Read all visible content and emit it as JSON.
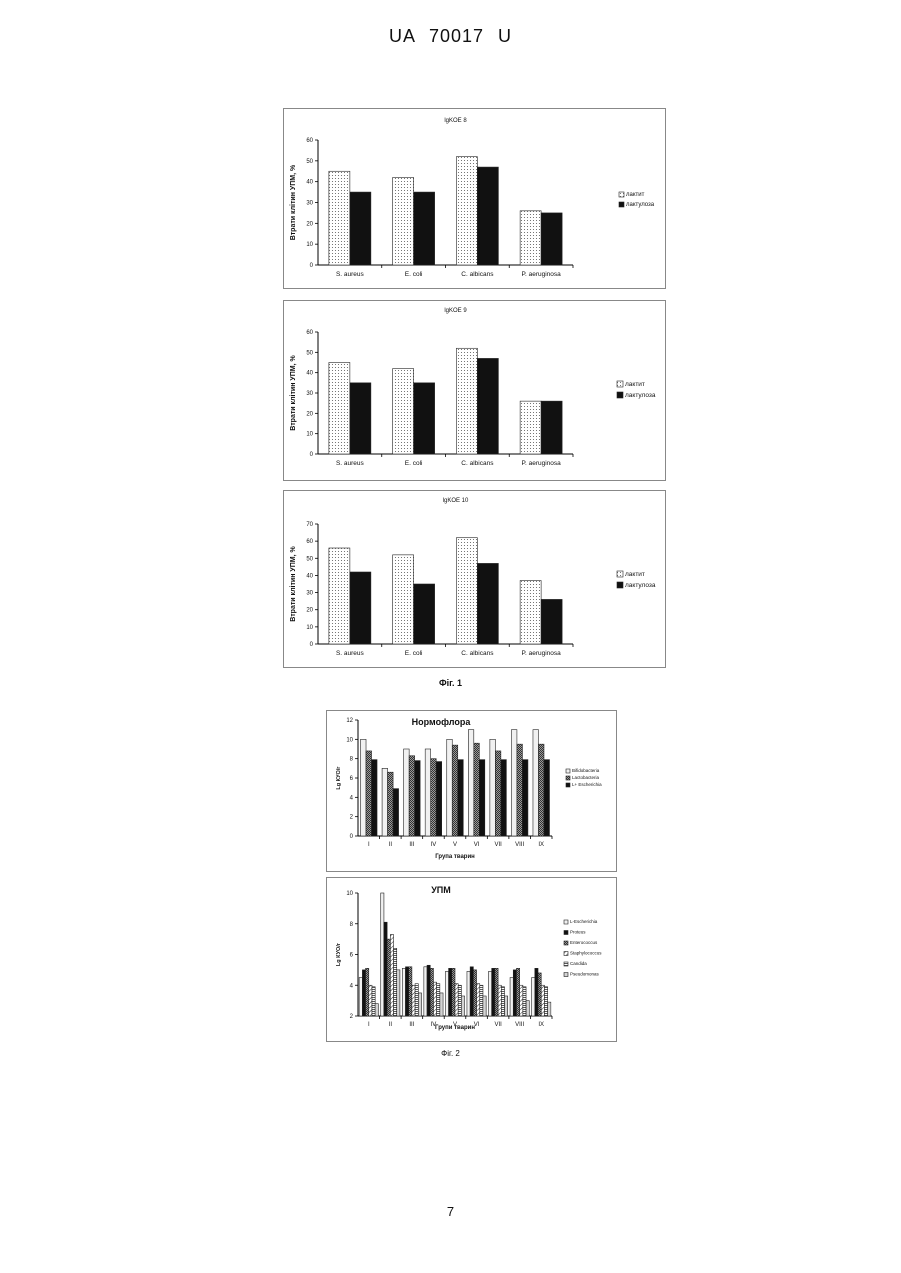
{
  "header": {
    "text": "UA   70017   U"
  },
  "page_number": "7",
  "fig1_caption": "Фіг. 1",
  "fig2_caption": "Фіг. 2",
  "chart_data": [
    {
      "type": "bar",
      "title": "lgKOE 8",
      "ylabel": "Втрати клітин УПМ, %",
      "xlabel": "",
      "ylim": [
        0,
        60
      ],
      "yticks": [
        "0",
        "10",
        "20",
        "30",
        "40",
        "50",
        "60"
      ],
      "categories": [
        "S. aureus",
        "E. coli",
        "C. albicans",
        "P. aeruginosa"
      ],
      "series": [
        {
          "name": "лактит",
          "values": [
            45,
            42,
            52,
            26
          ]
        },
        {
          "name": "лактулоза",
          "values": [
            35,
            35,
            47,
            25
          ]
        }
      ],
      "legend": "right"
    },
    {
      "type": "bar",
      "title": "lgKOE 9",
      "ylabel": "Втрати клітин УПМ, %",
      "xlabel": "",
      "ylim": [
        0,
        60
      ],
      "yticks": [
        "0",
        "10",
        "20",
        "30",
        "40",
        "50",
        "60"
      ],
      "categories": [
        "S. aureus",
        "E. coli",
        "C. albicans",
        "P. aeruginosa"
      ],
      "series": [
        {
          "name": "лактит",
          "values": [
            45,
            42,
            52,
            26
          ]
        },
        {
          "name": "лактулоза",
          "values": [
            35,
            35,
            47,
            26
          ]
        }
      ],
      "legend": "right"
    },
    {
      "type": "bar",
      "title": "lgKOE 10",
      "ylabel": "Втрати клітин УПМ, %",
      "xlabel": "",
      "ylim": [
        0,
        70
      ],
      "yticks": [
        "0",
        "10",
        "20",
        "30",
        "40",
        "50",
        "60",
        "70"
      ],
      "categories": [
        "S. aureus",
        "E. coli",
        "C. albicans",
        "P. aeruginosa"
      ],
      "series": [
        {
          "name": "лактит",
          "values": [
            56,
            52,
            62,
            37
          ]
        },
        {
          "name": "лактулоза",
          "values": [
            42,
            35,
            47,
            26
          ]
        }
      ],
      "legend": "right"
    },
    {
      "type": "bar",
      "title": "Нормофлора",
      "ylabel": "Lg КУО/г",
      "xlabel": "Група тварин",
      "ylim": [
        0,
        12
      ],
      "yticks": [
        "0",
        "2",
        "4",
        "6",
        "8",
        "10",
        "12"
      ],
      "categories": [
        "I",
        "II",
        "III",
        "IV",
        "V",
        "VI",
        "VII",
        "VIII",
        "IX"
      ],
      "series": [
        {
          "name": "Bifidobacteria",
          "values": [
            10,
            7,
            9,
            9,
            10,
            11,
            10,
            11,
            11
          ]
        },
        {
          "name": "Lactobacteria",
          "values": [
            8.8,
            6.6,
            8.3,
            8.0,
            9.4,
            9.6,
            8.8,
            9.5,
            9.5
          ]
        },
        {
          "name": "L+ Escherichia",
          "values": [
            7.9,
            4.9,
            7.8,
            7.7,
            7.9,
            7.9,
            7.9,
            7.9,
            7.9
          ]
        }
      ],
      "legend": "right"
    },
    {
      "type": "bar",
      "title": "УПМ",
      "ylabel": "Lg КУО/г",
      "xlabel": "Групи тварин",
      "ylim": [
        2,
        10
      ],
      "yticks": [
        "2",
        "4",
        "6",
        "8",
        "10"
      ],
      "categories": [
        "I",
        "II",
        "III",
        "IV",
        "V",
        "VI",
        "VII",
        "VIII",
        "IX"
      ],
      "series": [
        {
          "name": "L-Escherichia",
          "values": [
            4.5,
            10,
            5.1,
            5.2,
            4.9,
            4.9,
            4.9,
            4.5,
            4.5
          ]
        },
        {
          "name": "Proteus",
          "values": [
            5.0,
            8.1,
            5.2,
            5.3,
            5.1,
            5.2,
            5.1,
            5.0,
            5.1
          ]
        },
        {
          "name": "Enterococcus",
          "values": [
            5.1,
            7.0,
            5.2,
            5.1,
            5.1,
            5.0,
            5.1,
            5.1,
            4.8
          ]
        },
        {
          "name": "Staphylococcus",
          "values": [
            4.0,
            7.3,
            4.0,
            4.2,
            4.1,
            4.1,
            4.0,
            4.0,
            4.0
          ]
        },
        {
          "name": "Candida",
          "values": [
            3.9,
            6.4,
            4.1,
            4.1,
            4.0,
            4.0,
            3.9,
            3.9,
            3.9
          ]
        },
        {
          "name": "Pseudomonas",
          "values": [
            2.8,
            5.0,
            3.5,
            3.5,
            3.3,
            3.3,
            3.3,
            3.0,
            2.9
          ]
        }
      ],
      "legend": "right"
    }
  ]
}
